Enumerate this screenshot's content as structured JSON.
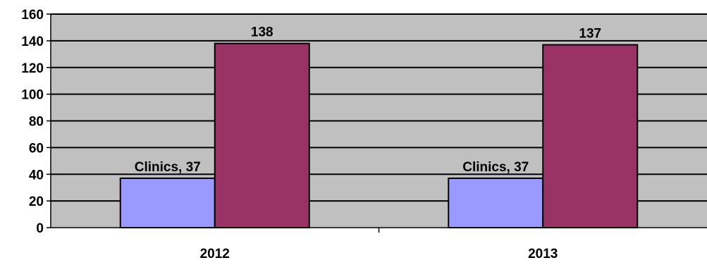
{
  "chart_data": {
    "type": "bar",
    "categories": [
      "2012",
      "2013"
    ],
    "series": [
      {
        "name": "Clinics",
        "values": [
          37,
          37
        ],
        "color": "#9999ff",
        "labels": [
          "Clinics, 37",
          "Clinics, 37"
        ]
      },
      {
        "values": [
          138,
          137
        ],
        "color": "#993366",
        "labels": [
          "138",
          "137"
        ]
      }
    ],
    "ylim": [
      0,
      160
    ],
    "yticks": [
      "0",
      "20",
      "40",
      "60",
      "80",
      "100",
      "120",
      "140",
      "160"
    ],
    "grid": true,
    "plot_background": "#c0c0c0",
    "legend": "none"
  }
}
